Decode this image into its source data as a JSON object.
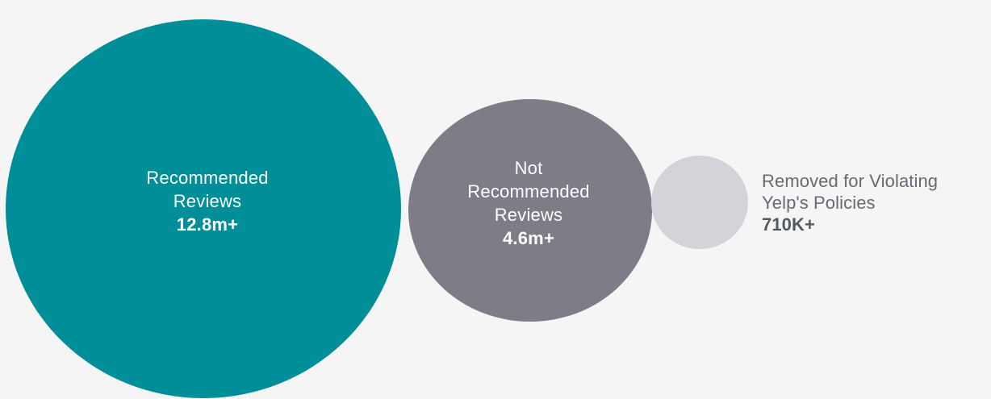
{
  "chart_data": {
    "type": "bubble",
    "title": "",
    "points": [
      {
        "name_lines": [
          "Recommended",
          "Reviews"
        ],
        "value_label": "12.8m+",
        "value": 12800000,
        "color": "#008e98"
      },
      {
        "name_lines": [
          "Not",
          "Recommended",
          "Reviews"
        ],
        "value_label": "4.6m+",
        "value": 4600000,
        "color": "#7f7c88"
      },
      {
        "name_lines": [
          "Removed for Violating",
          "Yelp's Policies"
        ],
        "value_label": "710K+",
        "value": 710000,
        "color": "#d3d4d9"
      }
    ]
  }
}
